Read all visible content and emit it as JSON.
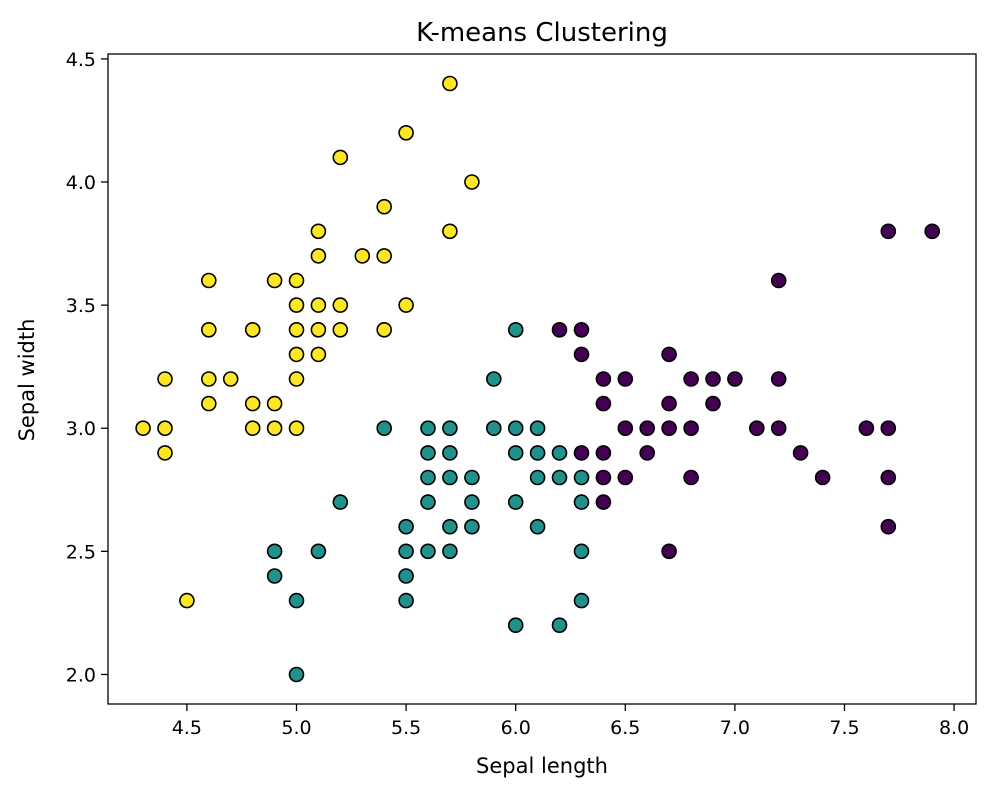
{
  "chart_data": {
    "type": "scatter",
    "title": "K-means Clustering",
    "xlabel": "Sepal length",
    "ylabel": "Sepal width",
    "xlim": [
      4.14,
      8.1
    ],
    "ylim": [
      1.88,
      4.52
    ],
    "xticks": [
      4.5,
      5.0,
      5.5,
      6.0,
      6.5,
      7.0,
      7.5,
      8.0
    ],
    "xtick_labels": [
      "4.5",
      "5.0",
      "5.5",
      "6.0",
      "6.5",
      "7.0",
      "7.5",
      "8.0"
    ],
    "yticks": [
      2.0,
      2.5,
      3.0,
      3.5,
      4.0,
      4.5
    ],
    "ytick_labels": [
      "2.0",
      "2.5",
      "3.0",
      "3.5",
      "4.0",
      "4.5"
    ],
    "grid": false,
    "legend": "none",
    "series": [
      {
        "color": "#fde725",
        "points": [
          [
            4.3,
            3.0
          ],
          [
            4.4,
            3.0
          ],
          [
            4.4,
            2.9
          ],
          [
            4.4,
            3.2
          ],
          [
            4.5,
            2.3
          ],
          [
            4.6,
            3.1
          ],
          [
            4.6,
            3.2
          ],
          [
            4.6,
            3.4
          ],
          [
            4.6,
            3.6
          ],
          [
            4.7,
            3.2
          ],
          [
            4.8,
            3.0
          ],
          [
            4.8,
            3.1
          ],
          [
            4.8,
            3.4
          ],
          [
            4.9,
            3.0
          ],
          [
            4.9,
            3.1
          ],
          [
            4.9,
            3.6
          ],
          [
            5.0,
            3.0
          ],
          [
            5.0,
            3.2
          ],
          [
            5.0,
            3.3
          ],
          [
            5.0,
            3.4
          ],
          [
            5.0,
            3.5
          ],
          [
            5.0,
            3.6
          ],
          [
            5.1,
            3.3
          ],
          [
            5.1,
            3.4
          ],
          [
            5.1,
            3.5
          ],
          [
            5.1,
            3.7
          ],
          [
            5.1,
            3.8
          ],
          [
            5.2,
            3.4
          ],
          [
            5.2,
            3.5
          ],
          [
            5.2,
            4.1
          ],
          [
            5.3,
            3.7
          ],
          [
            5.4,
            3.4
          ],
          [
            5.4,
            3.7
          ],
          [
            5.4,
            3.9
          ],
          [
            5.5,
            3.5
          ],
          [
            5.5,
            4.2
          ],
          [
            5.7,
            3.8
          ],
          [
            5.7,
            4.4
          ],
          [
            5.8,
            4.0
          ]
        ]
      },
      {
        "color": "#21918c",
        "points": [
          [
            4.9,
            2.4
          ],
          [
            4.9,
            2.5
          ],
          [
            5.0,
            2.0
          ],
          [
            5.0,
            2.3
          ],
          [
            5.1,
            2.5
          ],
          [
            5.2,
            2.7
          ],
          [
            5.4,
            3.0
          ],
          [
            5.5,
            2.3
          ],
          [
            5.5,
            2.4
          ],
          [
            5.5,
            2.5
          ],
          [
            5.5,
            2.6
          ],
          [
            5.6,
            2.5
          ],
          [
            5.6,
            2.7
          ],
          [
            5.6,
            2.8
          ],
          [
            5.6,
            2.9
          ],
          [
            5.6,
            3.0
          ],
          [
            5.7,
            2.5
          ],
          [
            5.7,
            2.6
          ],
          [
            5.7,
            2.8
          ],
          [
            5.7,
            2.9
          ],
          [
            5.7,
            3.0
          ],
          [
            5.8,
            2.6
          ],
          [
            5.8,
            2.7
          ],
          [
            5.8,
            2.8
          ],
          [
            5.9,
            3.0
          ],
          [
            5.9,
            3.2
          ],
          [
            6.0,
            2.2
          ],
          [
            6.0,
            2.7
          ],
          [
            6.0,
            2.9
          ],
          [
            6.0,
            3.0
          ],
          [
            6.0,
            3.4
          ],
          [
            6.1,
            2.6
          ],
          [
            6.1,
            2.8
          ],
          [
            6.1,
            2.9
          ],
          [
            6.1,
            3.0
          ],
          [
            6.2,
            2.2
          ],
          [
            6.2,
            2.8
          ],
          [
            6.2,
            2.9
          ],
          [
            6.3,
            2.3
          ],
          [
            6.3,
            2.5
          ],
          [
            6.3,
            2.7
          ],
          [
            6.3,
            2.8
          ]
        ]
      },
      {
        "color": "#440154",
        "points": [
          [
            6.2,
            3.4
          ],
          [
            6.3,
            2.9
          ],
          [
            6.3,
            3.3
          ],
          [
            6.3,
            3.4
          ],
          [
            6.4,
            2.7
          ],
          [
            6.4,
            2.8
          ],
          [
            6.4,
            2.9
          ],
          [
            6.4,
            3.1
          ],
          [
            6.4,
            3.2
          ],
          [
            6.5,
            2.8
          ],
          [
            6.5,
            3.0
          ],
          [
            6.5,
            3.2
          ],
          [
            6.6,
            2.9
          ],
          [
            6.6,
            3.0
          ],
          [
            6.7,
            2.5
          ],
          [
            6.7,
            3.0
          ],
          [
            6.7,
            3.1
          ],
          [
            6.7,
            3.3
          ],
          [
            6.8,
            2.8
          ],
          [
            6.8,
            3.0
          ],
          [
            6.8,
            3.2
          ],
          [
            6.9,
            3.1
          ],
          [
            6.9,
            3.2
          ],
          [
            7.0,
            3.2
          ],
          [
            7.1,
            3.0
          ],
          [
            7.2,
            3.0
          ],
          [
            7.2,
            3.2
          ],
          [
            7.2,
            3.6
          ],
          [
            7.3,
            2.9
          ],
          [
            7.4,
            2.8
          ],
          [
            7.6,
            3.0
          ],
          [
            7.7,
            2.6
          ],
          [
            7.7,
            2.8
          ],
          [
            7.7,
            3.0
          ],
          [
            7.7,
            3.8
          ],
          [
            7.9,
            3.8
          ]
        ]
      }
    ]
  }
}
